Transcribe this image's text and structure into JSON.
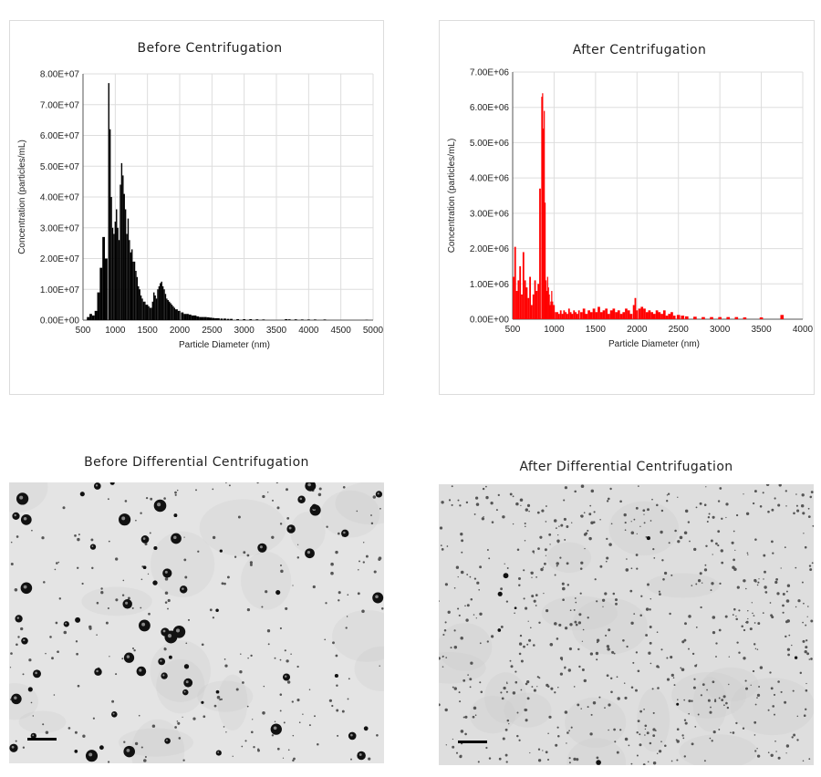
{
  "chart_data": [
    {
      "type": "bar",
      "title": "Before Centrifugation",
      "xlabel": "Particle Diameter (nm)",
      "ylabel": "Concentration (particles/mL)",
      "xlim": [
        500,
        5000
      ],
      "ylim": [
        0,
        80000000
      ],
      "xticks": [
        "500",
        "1000",
        "1500",
        "2000",
        "2500",
        "3000",
        "3500",
        "4000",
        "4500",
        "5000"
      ],
      "yticks": [
        "0.00E+00",
        "1.00E+07",
        "2.00E+07",
        "3.00E+07",
        "4.00E+07",
        "5.00E+07",
        "6.00E+07",
        "7.00E+07",
        "8.00E+07"
      ],
      "grid": true,
      "color": "#000000",
      "x": [
        580,
        620,
        660,
        700,
        740,
        780,
        820,
        860,
        900,
        920,
        940,
        960,
        980,
        1000,
        1020,
        1040,
        1060,
        1080,
        1100,
        1120,
        1140,
        1160,
        1180,
        1200,
        1220,
        1240,
        1260,
        1280,
        1300,
        1320,
        1340,
        1360,
        1380,
        1400,
        1420,
        1440,
        1460,
        1480,
        1500,
        1520,
        1540,
        1560,
        1580,
        1600,
        1620,
        1640,
        1660,
        1680,
        1700,
        1720,
        1740,
        1760,
        1780,
        1800,
        1820,
        1840,
        1860,
        1880,
        1900,
        1920,
        1940,
        1960,
        1980,
        2000,
        2040,
        2080,
        2120,
        2160,
        2200,
        2240,
        2280,
        2320,
        2360,
        2400,
        2440,
        2480,
        2520,
        2560,
        2600,
        2650,
        2700,
        2750,
        2800,
        2900,
        3000,
        3100,
        3200,
        3300,
        3650,
        3700,
        3800,
        3900,
        4000,
        4100,
        4250,
        4900
      ],
      "values": [
        1000000,
        2000000,
        1500000,
        3000000,
        9000000,
        17000000,
        27000000,
        20000000,
        77000000,
        62000000,
        40000000,
        30000000,
        28000000,
        32000000,
        36000000,
        30000000,
        26000000,
        44000000,
        51000000,
        47000000,
        41000000,
        36000000,
        28000000,
        33000000,
        26000000,
        22000000,
        23000000,
        19000000,
        19000000,
        16000000,
        14000000,
        11000000,
        10000000,
        8000000,
        7000000,
        6000000,
        6000000,
        5000000,
        5000000,
        4500000,
        4000000,
        4000000,
        6000000,
        9000000,
        8000000,
        7000000,
        10000000,
        11000000,
        12000000,
        12500000,
        11000000,
        10000000,
        8500000,
        7000000,
        6500000,
        6000000,
        5500000,
        5000000,
        4500000,
        4000000,
        3500000,
        3500000,
        3000000,
        3000000,
        2500000,
        2000000,
        2000000,
        1800000,
        1500000,
        1500000,
        1200000,
        1000000,
        1000000,
        1000000,
        900000,
        800000,
        700000,
        600000,
        600000,
        500000,
        500000,
        400000,
        400000,
        300000,
        300000,
        300000,
        250000,
        200000,
        300000,
        250000,
        250000,
        200000,
        200000,
        200000,
        200000,
        100000
      ]
    },
    {
      "type": "bar",
      "title": "After Centrifugation",
      "xlabel": "Particle Diameter (nm)",
      "ylabel": "Concentration (particles/mL)",
      "xlim": [
        500,
        4000
      ],
      "ylim": [
        0,
        7000000
      ],
      "xticks": [
        "500",
        "1000",
        "1500",
        "2000",
        "2500",
        "3000",
        "3500",
        "4000"
      ],
      "yticks": [
        "0.00E+00",
        "1.00E+06",
        "2.00E+06",
        "3.00E+06",
        "4.00E+06",
        "5.00E+06",
        "6.00E+06",
        "7.00E+06"
      ],
      "grid": true,
      "color": "#ff0000",
      "x": [
        510,
        530,
        550,
        570,
        590,
        610,
        630,
        650,
        670,
        690,
        710,
        730,
        750,
        770,
        790,
        810,
        830,
        850,
        860,
        870,
        880,
        890,
        900,
        910,
        920,
        930,
        940,
        950,
        960,
        970,
        980,
        990,
        1000,
        1020,
        1040,
        1060,
        1080,
        1100,
        1120,
        1140,
        1160,
        1180,
        1200,
        1220,
        1240,
        1260,
        1280,
        1300,
        1330,
        1360,
        1390,
        1420,
        1450,
        1480,
        1510,
        1540,
        1570,
        1600,
        1630,
        1660,
        1690,
        1720,
        1750,
        1780,
        1810,
        1840,
        1870,
        1900,
        1930,
        1960,
        1980,
        2000,
        2030,
        2060,
        2090,
        2120,
        2150,
        2180,
        2210,
        2240,
        2270,
        2300,
        2330,
        2360,
        2390,
        2420,
        2450,
        2500,
        2550,
        2600,
        2700,
        2800,
        2900,
        3000,
        3100,
        3200,
        3300,
        3500,
        3750
      ],
      "values": [
        1200000,
        2050000,
        800000,
        1100000,
        1500000,
        700000,
        1900000,
        1100000,
        900000,
        600000,
        1200000,
        400000,
        700000,
        1100000,
        800000,
        1000000,
        3700000,
        6300000,
        6400000,
        5400000,
        5900000,
        3300000,
        1100000,
        800000,
        1200000,
        900000,
        700000,
        400000,
        500000,
        800000,
        500000,
        400000,
        400000,
        200000,
        200000,
        150000,
        250000,
        150000,
        250000,
        200000,
        150000,
        300000,
        200000,
        150000,
        250000,
        200000,
        150000,
        250000,
        200000,
        300000,
        150000,
        250000,
        200000,
        300000,
        200000,
        350000,
        200000,
        250000,
        300000,
        150000,
        250000,
        300000,
        200000,
        250000,
        150000,
        200000,
        300000,
        250000,
        150000,
        400000,
        600000,
        250000,
        300000,
        350000,
        300000,
        200000,
        250000,
        200000,
        150000,
        250000,
        200000,
        150000,
        250000,
        100000,
        150000,
        200000,
        100000,
        120000,
        100000,
        80000,
        70000,
        60000,
        60000,
        60000,
        60000,
        60000,
        50000,
        50000,
        120000
      ]
    }
  ],
  "micrographs": {
    "before_title": "Before Differential Centrifugation",
    "after_title": "After Differential Centrifugation"
  }
}
